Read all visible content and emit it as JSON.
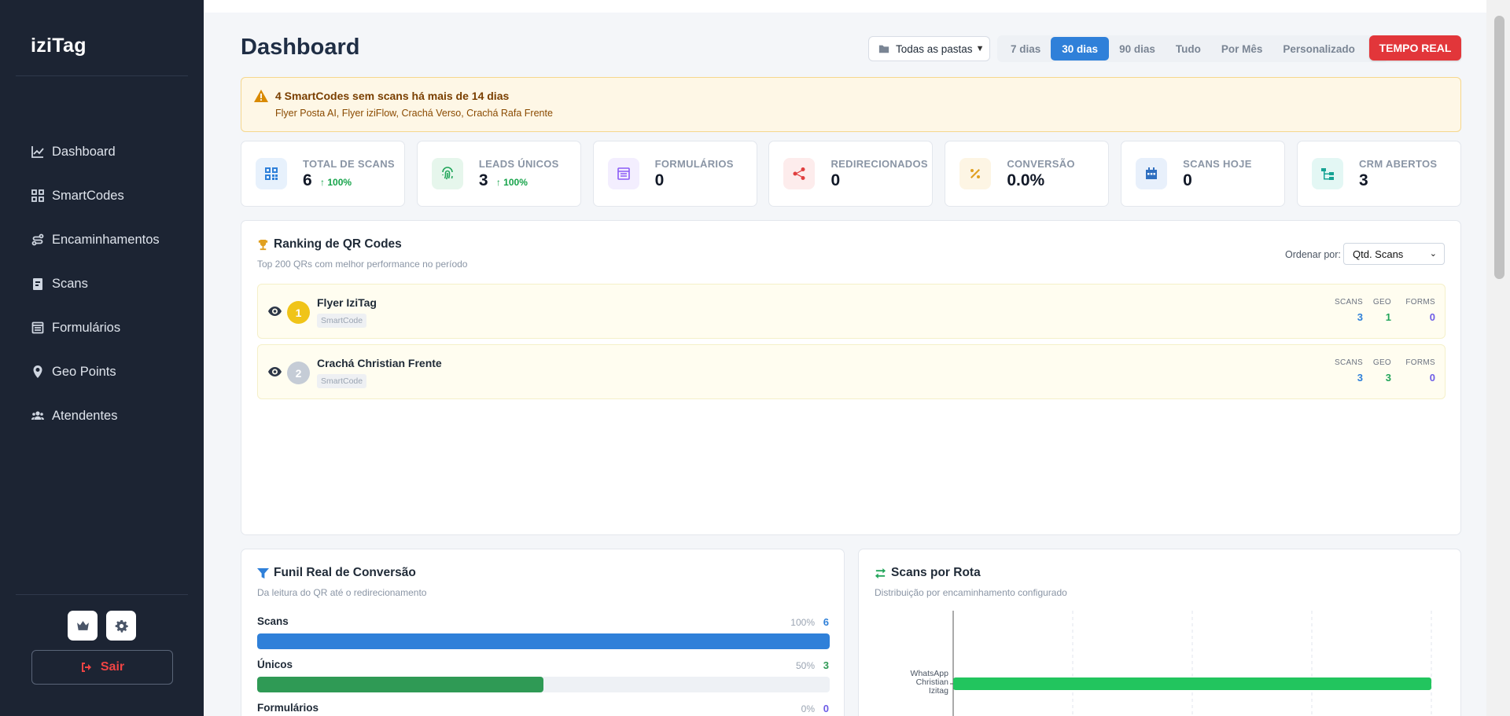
{
  "sidebar": {
    "brand": "iziTag",
    "items": [
      {
        "label": "Dashboard",
        "icon": "chart-line-icon"
      },
      {
        "label": "SmartCodes",
        "icon": "qr-grid-icon"
      },
      {
        "label": "Encaminhamentos",
        "icon": "route-icon"
      },
      {
        "label": "Scans",
        "icon": "clipboard-icon"
      },
      {
        "label": "Formulários",
        "icon": "form-icon"
      },
      {
        "label": "Geo Points",
        "icon": "map-pin-icon"
      },
      {
        "label": "Atendentes",
        "icon": "users-icon"
      }
    ],
    "logout_label": "Sair"
  },
  "header": {
    "title": "Dashboard",
    "folder_select": "Todas as pastas",
    "ranges": [
      "7 dias",
      "30 dias",
      "90 dias",
      "Tudo",
      "Por Mês",
      "Personalizado"
    ],
    "active_range": "30 dias",
    "realtime_label": "TEMPO REAL"
  },
  "alert": {
    "title": "4 SmartCodes sem scans há mais de 14 dias",
    "items": "Flyer Posta AI, Flyer iziFlow, Crachá Verso, Crachá Rafa Frente"
  },
  "stats": [
    {
      "label": "TOTAL DE SCANS",
      "value": "6",
      "change": "100%",
      "color": "#2f80d9",
      "bg": "#e7f1fc"
    },
    {
      "label": "LEADS ÚNICOS",
      "value": "3",
      "change": "100%",
      "color": "#22a55a",
      "bg": "#e6f6ec"
    },
    {
      "label": "FORMULÁRIOS",
      "value": "0",
      "change": "",
      "color": "#8b5cf6",
      "bg": "#f3eefe"
    },
    {
      "label": "REDIRECIONADOS",
      "value": "0",
      "change": "",
      "color": "#e03e3e",
      "bg": "#fdecec"
    },
    {
      "label": "CONVERSÃO",
      "value": "0.0%",
      "change": "",
      "color": "#e0a020",
      "bg": "#fdf5e4"
    },
    {
      "label": "SCANS HOJE",
      "value": "0",
      "change": "",
      "color": "#2f6fc0",
      "bg": "#e8f0fb"
    },
    {
      "label": "CRM ABERTOS",
      "value": "3",
      "change": "",
      "color": "#16a394",
      "bg": "#e3f7f4"
    }
  ],
  "ranking": {
    "title": "Ranking de QR Codes",
    "subtitle": "Top 200 QRs com melhor performance no período",
    "order_label": "Ordenar por:",
    "order_value": "Qtd. Scans",
    "metric_labels": {
      "scans": "SCANS",
      "geo": "GEO",
      "forms": "FORMS"
    },
    "rows": [
      {
        "rank": "1",
        "name": "Flyer IziTag",
        "tag": "SmartCode",
        "scans": "3",
        "geo": "1",
        "forms": "0",
        "badge_color": "#f0c419"
      },
      {
        "rank": "2",
        "name": "Crachá Christian Frente",
        "tag": "SmartCode",
        "scans": "3",
        "geo": "3",
        "forms": "0",
        "badge_color": "#c5ccd6"
      }
    ]
  },
  "funnel": {
    "title": "Funil Real de Conversão",
    "subtitle": "Da leitura do QR até o redirecionamento",
    "rows": [
      {
        "label": "Scans",
        "pct": "100%",
        "value": "6",
        "fill": 1.0,
        "color": "#2f80d9"
      },
      {
        "label": "Únicos",
        "pct": "50%",
        "value": "3",
        "fill": 0.5,
        "color": "#2f9a55"
      },
      {
        "label": "Formulários",
        "pct": "0%",
        "value": "0",
        "fill": 0.0,
        "color": "#6d5ce6"
      }
    ]
  },
  "routes": {
    "title": "Scans por Rota",
    "subtitle": "Distribuição por encaminhamento configurado",
    "chart_data": {
      "type": "bar",
      "categories": [
        "WhatsApp Christian Izitag"
      ],
      "values": [
        1
      ],
      "xlim": [
        0,
        1
      ],
      "color": "#22c55e"
    }
  }
}
